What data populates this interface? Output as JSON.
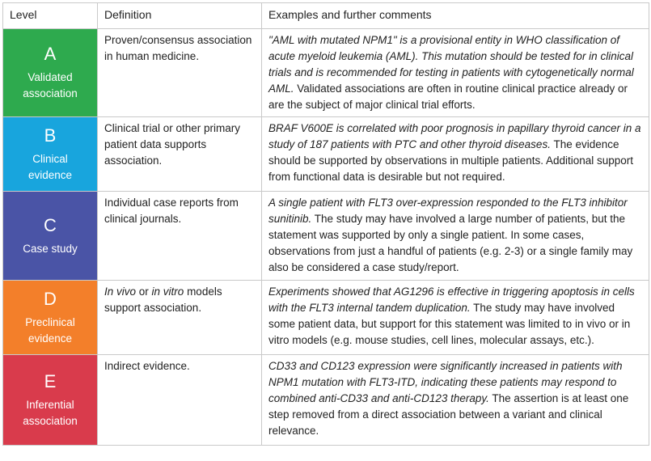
{
  "headers": [
    "Level",
    "Definition",
    "Examples and further comments"
  ],
  "rows": [
    {
      "letter": "A",
      "label_l1": "Validated",
      "label_l2": "association",
      "color": "#2eaa4e",
      "definition": "Proven/consensus association in human medicine.",
      "example_italic": "\"AML with mutated NPM1\" is a provisional entity in WHO classification of acute myeloid leukemia (AML). This mutation should be tested for in clinical trials and is recommended for testing in patients with cytogenetically normal AML.",
      "example_rest": " Validated associations are often in routine clinical practice already or are the subject of major clinical trial efforts."
    },
    {
      "letter": "B",
      "label_l1": "Clinical",
      "label_l2": "evidence",
      "color": "#18a5dd",
      "definition": "Clinical trial or other primary patient data supports association.",
      "example_italic": "BRAF V600E is correlated with poor prognosis in papillary thyroid cancer in a study of 187 patients with PTC and other thyroid diseases.",
      "example_rest": " The evidence should be supported by observations in multiple patients. Additional support from functional data is desirable but not required."
    },
    {
      "letter": "C",
      "label_l1": "Case study",
      "label_l2": "",
      "color": "#4a54a6",
      "definition": "Individual case reports from clinical journals.",
      "example_italic": "A single patient with FLT3 over-expression responded to the FLT3 inhibitor sunitinib.",
      "example_rest": " The study may have involved a large number of patients, but the statement was supported by only a single patient. In some cases, observations from just a handful of patients (e.g. 2-3) or a single family may also be considered a case study/report."
    },
    {
      "letter": "D",
      "label_l1": "Preclinical",
      "label_l2": "evidence",
      "color": "#f37f2a",
      "definition_parts": [
        "In vivo",
        " or ",
        "in vitro",
        " models support association."
      ],
      "example_italic": "Experiments showed that AG1296 is effective in triggering apoptosis in cells with the FLT3 internal tandem duplication.",
      "example_rest": " The study may have involved some patient data, but support for this statement was limited to in vivo or in vitro models (e.g. mouse studies, cell lines, molecular assays, etc.)."
    },
    {
      "letter": "E",
      "label_l1": "Inferential",
      "label_l2": "association",
      "color": "#d93b4c",
      "definition": "Indirect evidence.",
      "example_italic": "CD33 and CD123 expression were significantly increased in patients with NPM1 mutation with FLT3-ITD, indicating these patients may respond to combined anti-CD33 and anti-CD123 therapy.",
      "example_rest": " The assertion is at least one step removed from a direct association between a variant and clinical relevance."
    }
  ]
}
